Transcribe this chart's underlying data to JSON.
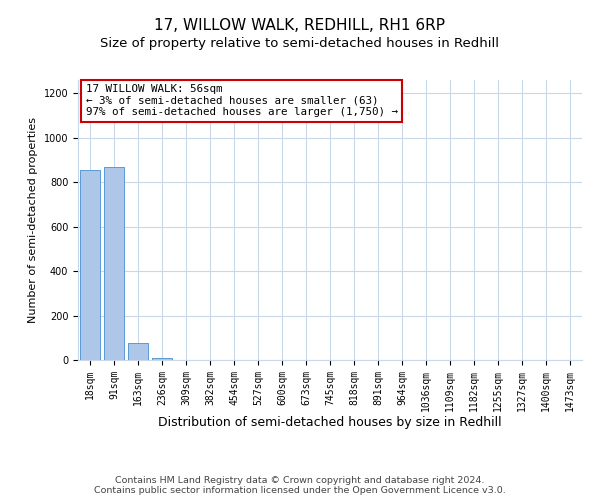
{
  "title": "17, WILLOW WALK, REDHILL, RH1 6RP",
  "subtitle": "Size of property relative to semi-detached houses in Redhill",
  "xlabel": "Distribution of semi-detached houses by size in Redhill",
  "ylabel": "Number of semi-detached properties",
  "footer_line1": "Contains HM Land Registry data © Crown copyright and database right 2024.",
  "footer_line2": "Contains public sector information licensed under the Open Government Licence v3.0.",
  "annotation_title": "17 WILLOW WALK: 56sqm",
  "annotation_line1": "← 3% of semi-detached houses are smaller (63)",
  "annotation_line2": "97% of semi-detached houses are larger (1,750) →",
  "bar_labels": [
    "18sqm",
    "91sqm",
    "163sqm",
    "236sqm",
    "309sqm",
    "382sqm",
    "454sqm",
    "527sqm",
    "600sqm",
    "673sqm",
    "745sqm",
    "818sqm",
    "891sqm",
    "964sqm",
    "1036sqm",
    "1109sqm",
    "1182sqm",
    "1255sqm",
    "1327sqm",
    "1400sqm",
    "1473sqm"
  ],
  "bar_values": [
    855,
    868,
    78,
    10,
    0,
    0,
    0,
    0,
    0,
    0,
    0,
    0,
    0,
    0,
    0,
    0,
    0,
    0,
    0,
    0,
    0
  ],
  "bar_color": "#aec6e8",
  "bar_edge_color": "#5a9ad4",
  "annotation_box_edge_color": "#cc0000",
  "grid_color": "#c8d8e8",
  "ylim": [
    0,
    1260
  ],
  "yticks": [
    0,
    200,
    400,
    600,
    800,
    1000,
    1200
  ],
  "title_fontsize": 11,
  "subtitle_fontsize": 9.5,
  "xlabel_fontsize": 9,
  "ylabel_fontsize": 8,
  "tick_fontsize": 7,
  "annotation_fontsize": 7.8,
  "footer_fontsize": 6.8
}
